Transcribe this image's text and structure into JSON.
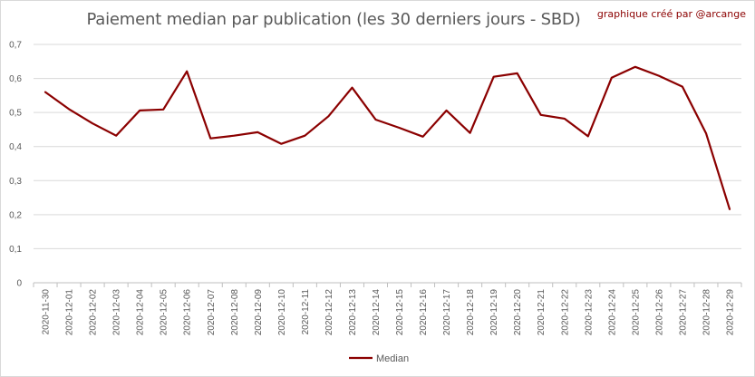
{
  "title": "Paiement median par publication (les 30 derniers jours - SBD)",
  "credit": "graphique créé par @arcange",
  "chart_data": {
    "type": "line",
    "title": "Paiement median par publication (les 30 derniers jours - SBD)",
    "xlabel": "",
    "ylabel": "",
    "ylim": [
      0,
      0.7
    ],
    "yticks": [
      "0",
      "0,1",
      "0,2",
      "0,3",
      "0,4",
      "0,5",
      "0,6",
      "0,7"
    ],
    "grid": true,
    "legend_position": "bottom",
    "categories": [
      "2020-11-30",
      "2020-12-01",
      "2020-12-02",
      "2020-12-03",
      "2020-12-04",
      "2020-12-05",
      "2020-12-06",
      "2020-12-07",
      "2020-12-08",
      "2020-12-09",
      "2020-12-10",
      "2020-12-11",
      "2020-12-12",
      "2020-12-13",
      "2020-12-14",
      "2020-12-15",
      "2020-12-16",
      "2020-12-17",
      "2020-12-18",
      "2020-12-19",
      "2020-12-20",
      "2020-12-21",
      "2020-12-22",
      "2020-12-23",
      "2020-12-24",
      "2020-12-25",
      "2020-12-26",
      "2020-12-27",
      "2020-12-28",
      "2020-12-29"
    ],
    "series": [
      {
        "name": "Median",
        "color": "#8b0000",
        "values": [
          0.56,
          0.51,
          0.468,
          0.432,
          0.506,
          0.509,
          0.621,
          0.424,
          0.432,
          0.442,
          0.408,
          0.432,
          0.489,
          0.573,
          0.479,
          0.455,
          0.429,
          0.506,
          0.44,
          0.605,
          0.615,
          0.493,
          0.482,
          0.43,
          0.602,
          0.634,
          0.608,
          0.576,
          0.439,
          0.216
        ]
      }
    ]
  }
}
